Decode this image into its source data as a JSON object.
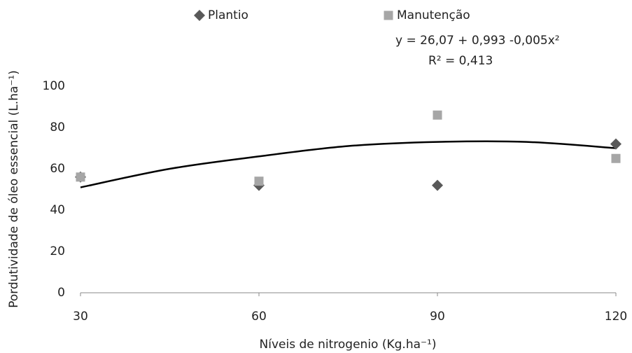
{
  "chart_data": {
    "type": "scatter",
    "x_label": "Níveis de nitrogenio (Kg.ha⁻¹)",
    "y_label": "Pordutividade de óleo essencial (L.ha⁻¹)",
    "x": [
      30,
      60,
      90,
      120
    ],
    "series": [
      {
        "name": "Plantio",
        "color": "#595959",
        "marker": "diamond",
        "values": [
          56,
          52,
          52,
          72
        ]
      },
      {
        "name": "Manutenção",
        "color": "#a6a6a6",
        "marker": "square",
        "values": [
          56,
          54,
          86,
          65
        ]
      }
    ],
    "trendline": {
      "color": "#000000",
      "x": [
        30,
        45,
        60,
        75,
        90,
        105,
        120
      ],
      "values": [
        51,
        60,
        66,
        71,
        73,
        73,
        70
      ],
      "equation": "y =  26,07 + 0,993 -0,005x²",
      "r2": "R² = 0,413"
    },
    "xlim": [
      30,
      120
    ],
    "ylim": [
      0,
      100
    ],
    "xticks": [
      30,
      60,
      90,
      120
    ],
    "yticks": [
      0,
      20,
      40,
      60,
      80,
      100
    ],
    "grid": false,
    "legend": "top"
  }
}
